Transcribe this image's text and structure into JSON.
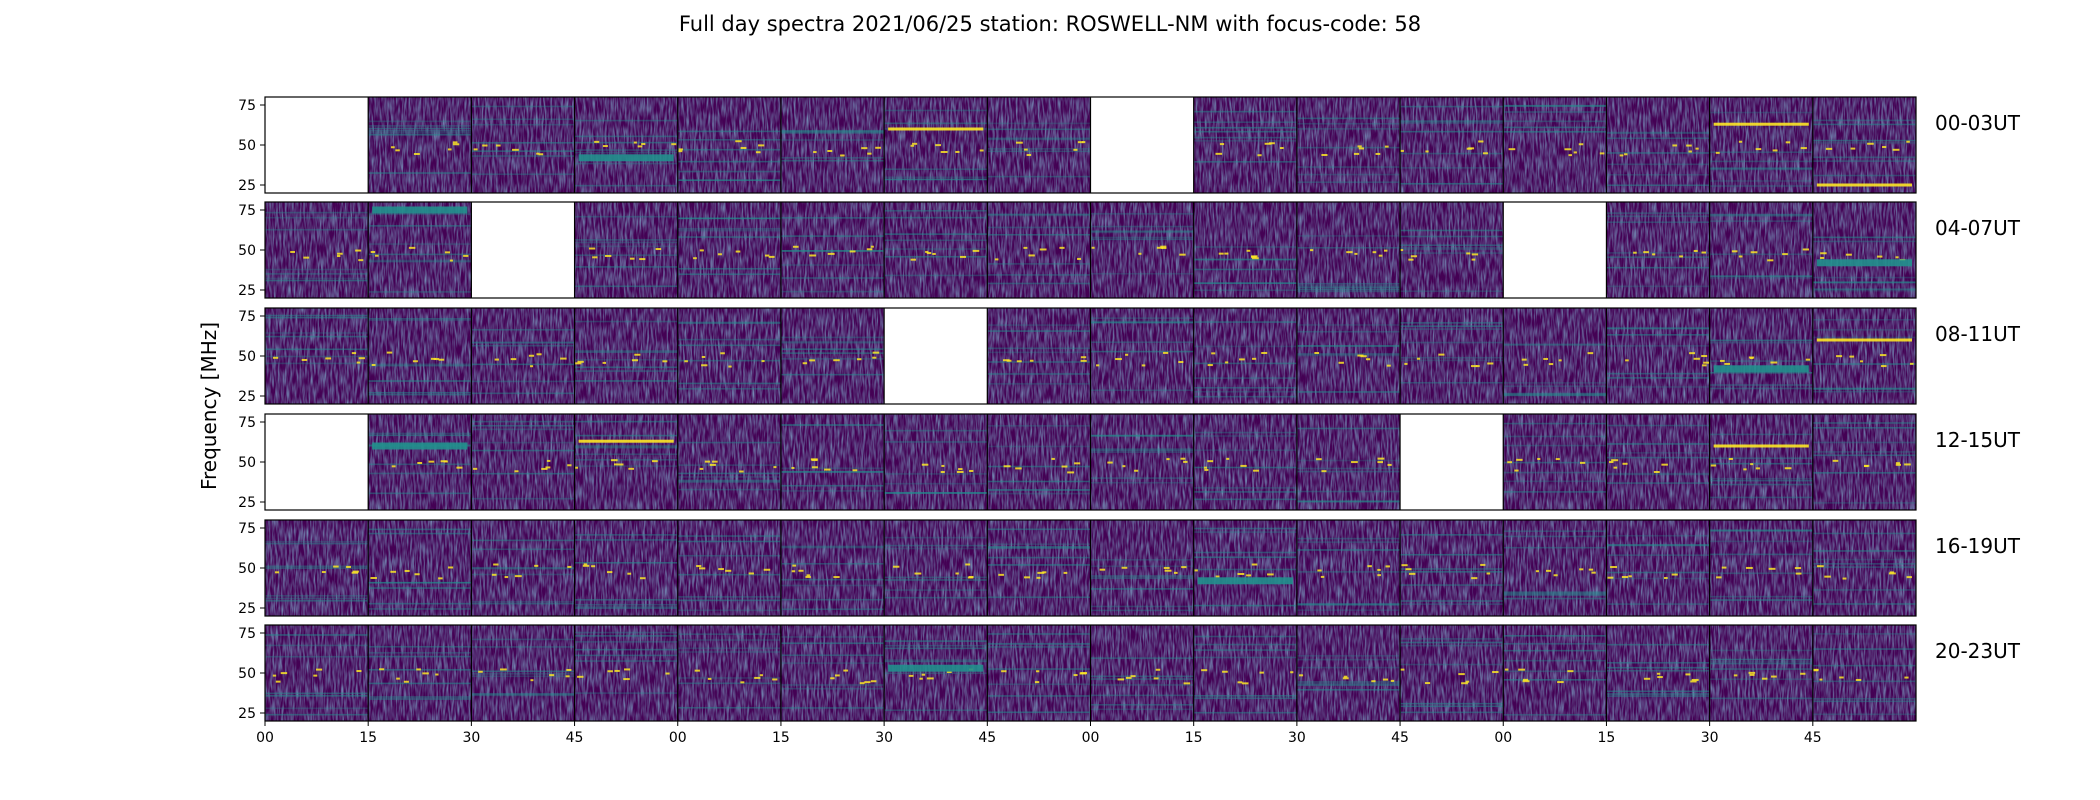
{
  "chart_data": {
    "type": "heatmap",
    "title": "Full day spectra 2021/06/25 station: ROSWELL-NM with focus-code: 58",
    "ylabel": "Frequency [MHz]",
    "ylim": [
      20,
      80
    ],
    "yticks": [
      "75",
      "50",
      "25"
    ],
    "xticks": [
      "00",
      "15",
      "30",
      "45",
      "00",
      "15",
      "30",
      "45",
      "00",
      "15",
      "30",
      "45",
      "00",
      "15",
      "30",
      "45"
    ],
    "colormap": "viridis",
    "colors": {
      "low": "#440154",
      "mid": "#21908d",
      "high": "#fde725"
    },
    "panels_per_row": 16,
    "minutes_per_panel": 15,
    "rows": [
      {
        "label": "00-03UT",
        "missing_panels": [
          0,
          8
        ]
      },
      {
        "label": "04-07UT",
        "missing_panels": [
          2,
          12
        ]
      },
      {
        "label": "08-11UT",
        "missing_panels": [
          6
        ]
      },
      {
        "label": "12-15UT",
        "missing_panels": [
          0,
          11
        ]
      },
      {
        "label": "16-19UT",
        "missing_panels": []
      },
      {
        "label": "20-23UT",
        "missing_panels": []
      }
    ],
    "bright_features": [
      {
        "row": 0,
        "panel": 15,
        "freq": 25,
        "level": "high"
      },
      {
        "row": 0,
        "panel": 14,
        "freq": 63,
        "level": "high"
      },
      {
        "row": 0,
        "panel": 6,
        "freq": 60,
        "level": "high"
      },
      {
        "row": 0,
        "panel": 3,
        "freq": 42,
        "level": "mid"
      },
      {
        "row": 1,
        "panel": 1,
        "freq": 75,
        "level": "mid"
      },
      {
        "row": 1,
        "panel": 15,
        "freq": 42,
        "level": "mid"
      },
      {
        "row": 2,
        "panel": 15,
        "freq": 60,
        "level": "high"
      },
      {
        "row": 2,
        "panel": 14,
        "freq": 42,
        "level": "mid"
      },
      {
        "row": 3,
        "panel": 14,
        "freq": 60,
        "level": "high"
      },
      {
        "row": 3,
        "panel": 3,
        "freq": 63,
        "level": "high"
      },
      {
        "row": 3,
        "panel": 1,
        "freq": 60,
        "level": "mid"
      },
      {
        "row": 4,
        "panel": 9,
        "freq": 42,
        "level": "mid"
      },
      {
        "row": 5,
        "panel": 6,
        "freq": 53,
        "level": "mid"
      }
    ]
  }
}
